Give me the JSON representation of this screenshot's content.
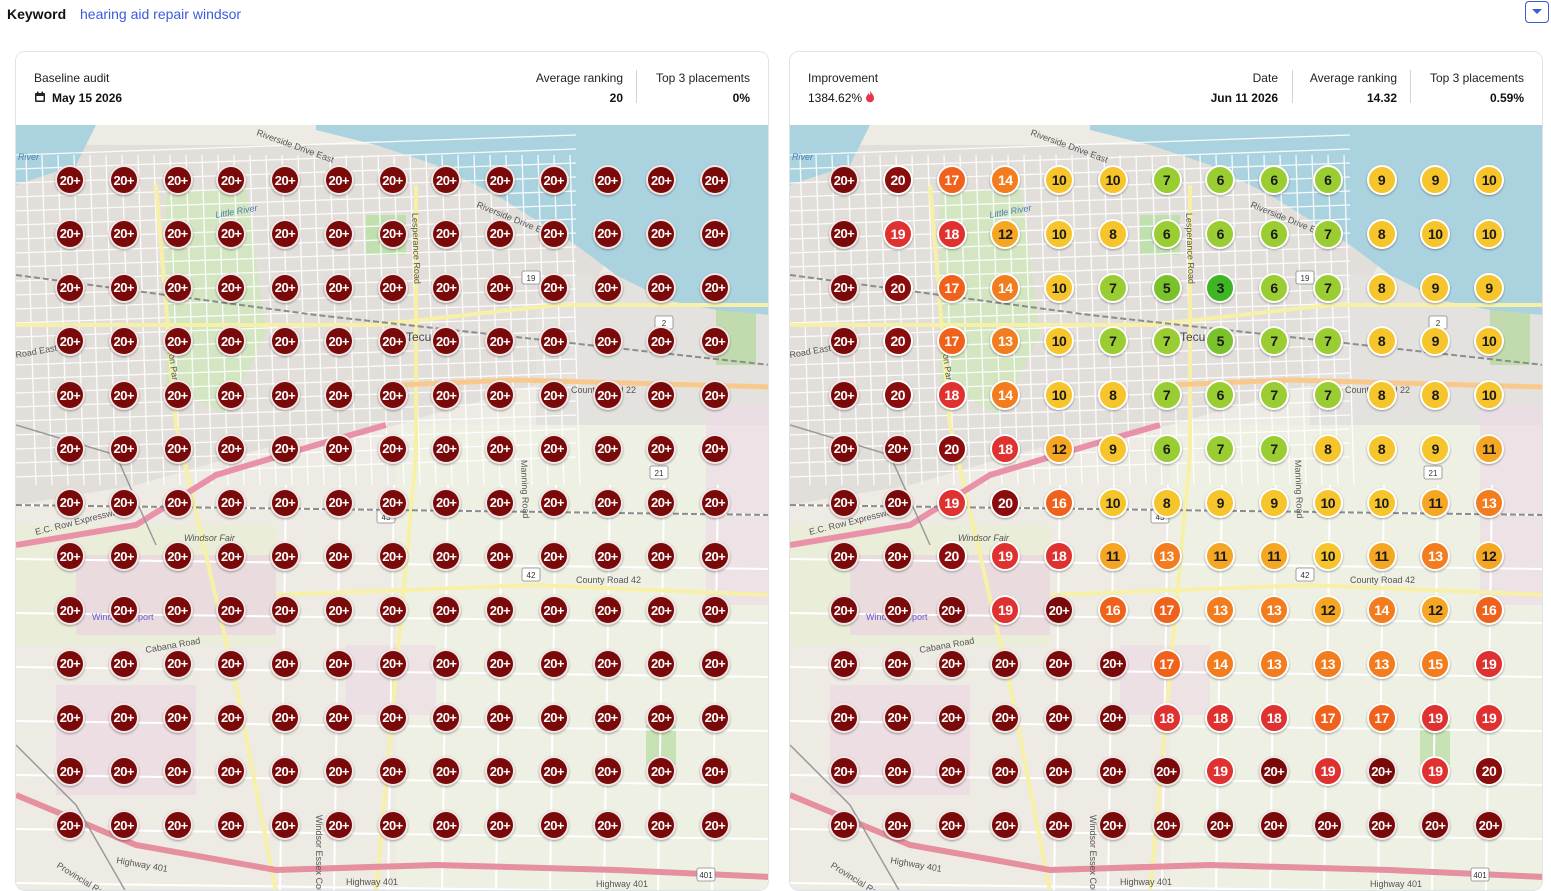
{
  "keyword": {
    "label": "Keyword",
    "value": "hearing aid repair windsor"
  },
  "colors": {
    "accent": "#3b5bdb",
    "rank_20_plus": "#7a0a0a",
    "rank_20": "#8a0c0c",
    "rank_18_19": "#e03131",
    "rank_16_17": "#f0621c",
    "rank_13_15": "#f27c1e",
    "rank_11_12": "#f5a623",
    "rank_8_10": "#f6c52b",
    "rank_6_7": "#9acd32",
    "rank_4_5": "#79c22b",
    "rank_1_3": "#40b523"
  },
  "baseline": {
    "title": "Baseline audit",
    "date": "May 15 2026",
    "date_icon": "calendar-icon",
    "avg_label": "Average ranking",
    "avg_value": "20",
    "top3_label": "Top 3 placements",
    "top3_value": "0%",
    "grid": [
      [
        "20+",
        "20+",
        "20+",
        "20+",
        "20+",
        "20+",
        "20+",
        "20+",
        "20+",
        "20+",
        "20+",
        "20+",
        "20+"
      ],
      [
        "20+",
        "20+",
        "20+",
        "20+",
        "20+",
        "20+",
        "20+",
        "20+",
        "20+",
        "20+",
        "20+",
        "20+",
        "20+"
      ],
      [
        "20+",
        "20+",
        "20+",
        "20+",
        "20+",
        "20+",
        "20+",
        "20+",
        "20+",
        "20+",
        "20+",
        "20+",
        "20+"
      ],
      [
        "20+",
        "20+",
        "20+",
        "20+",
        "20+",
        "20+",
        "20+",
        "20+",
        "20+",
        "20+",
        "20+",
        "20+",
        "20+"
      ],
      [
        "20+",
        "20+",
        "20+",
        "20+",
        "20+",
        "20+",
        "20+",
        "20+",
        "20+",
        "20+",
        "20+",
        "20+",
        "20+"
      ],
      [
        "20+",
        "20+",
        "20+",
        "20+",
        "20+",
        "20+",
        "20+",
        "20+",
        "20+",
        "20+",
        "20+",
        "20+",
        "20+"
      ],
      [
        "20+",
        "20+",
        "20+",
        "20+",
        "20+",
        "20+",
        "20+",
        "20+",
        "20+",
        "20+",
        "20+",
        "20+",
        "20+"
      ],
      [
        "20+",
        "20+",
        "20+",
        "20+",
        "20+",
        "20+",
        "20+",
        "20+",
        "20+",
        "20+",
        "20+",
        "20+",
        "20+"
      ],
      [
        "20+",
        "20+",
        "20+",
        "20+",
        "20+",
        "20+",
        "20+",
        "20+",
        "20+",
        "20+",
        "20+",
        "20+",
        "20+"
      ],
      [
        "20+",
        "20+",
        "20+",
        "20+",
        "20+",
        "20+",
        "20+",
        "20+",
        "20+",
        "20+",
        "20+",
        "20+",
        "20+"
      ],
      [
        "20+",
        "20+",
        "20+",
        "20+",
        "20+",
        "20+",
        "20+",
        "20+",
        "20+",
        "20+",
        "20+",
        "20+",
        "20+"
      ],
      [
        "20+",
        "20+",
        "20+",
        "20+",
        "20+",
        "20+",
        "20+",
        "20+",
        "20+",
        "20+",
        "20+",
        "20+",
        "20+"
      ],
      [
        "20+",
        "20+",
        "20+",
        "20+",
        "20+",
        "20+",
        "20+",
        "20+",
        "20+",
        "20+",
        "20+",
        "20+",
        "20+"
      ]
    ]
  },
  "current": {
    "improvement_label": "Improvement",
    "improvement_value": "1384.62%",
    "improvement_icon": "flame-icon",
    "date_label": "Date",
    "date_value": "Jun 11 2026",
    "avg_label": "Average ranking",
    "avg_value": "14.32",
    "top3_label": "Top 3 placements",
    "top3_value": "0.59%",
    "grid": [
      [
        "20+",
        "20",
        "17",
        "14",
        "10",
        "10",
        "7",
        "6",
        "6",
        "6",
        "9",
        "9",
        "10"
      ],
      [
        "20+",
        "19",
        "18",
        "12",
        "10",
        "8",
        "6",
        "6",
        "6",
        "7",
        "8",
        "10",
        "10"
      ],
      [
        "20+",
        "20",
        "17",
        "14",
        "10",
        "7",
        "5",
        "3",
        "6",
        "7",
        "8",
        "9",
        "9"
      ],
      [
        "20+",
        "20",
        "17",
        "13",
        "10",
        "7",
        "7",
        "5",
        "7",
        "7",
        "8",
        "9",
        "10"
      ],
      [
        "20+",
        "20",
        "18",
        "14",
        "10",
        "8",
        "7",
        "6",
        "7",
        "7",
        "8",
        "8",
        "10"
      ],
      [
        "20+",
        "20+",
        "20",
        "18",
        "12",
        "9",
        "6",
        "7",
        "7",
        "8",
        "8",
        "9",
        "11"
      ],
      [
        "20+",
        "20+",
        "19",
        "20",
        "16",
        "10",
        "8",
        "9",
        "9",
        "10",
        "10",
        "11",
        "13"
      ],
      [
        "20+",
        "20+",
        "20",
        "19",
        "18",
        "11",
        "13",
        "11",
        "11",
        "10",
        "11",
        "13",
        "12"
      ],
      [
        "20+",
        "20+",
        "20+",
        "19",
        "20+",
        "16",
        "17",
        "13",
        "13",
        "12",
        "14",
        "12",
        "16"
      ],
      [
        "20+",
        "20+",
        "20+",
        "20+",
        "20+",
        "20+",
        "17",
        "14",
        "13",
        "13",
        "13",
        "15",
        "19"
      ],
      [
        "20+",
        "20+",
        "20+",
        "20+",
        "20+",
        "20+",
        "18",
        "18",
        "18",
        "17",
        "17",
        "19",
        "19"
      ],
      [
        "20+",
        "20+",
        "20+",
        "20+",
        "20+",
        "20+",
        "20+",
        "19",
        "20+",
        "19",
        "20+",
        "19",
        "20"
      ],
      [
        "20+",
        "20+",
        "20+",
        "20+",
        "20+",
        "20+",
        "20+",
        "20+",
        "20+",
        "20+",
        "20+",
        "20+",
        "20+"
      ]
    ]
  },
  "map_labels": {
    "river": "River",
    "riverside_east": "Riverside Drive East",
    "riverside_east_2": "Riverside Drive East",
    "little_river": "Little River",
    "lesperance": "Lesperance Road",
    "lauzon": "Lauzon Parkway",
    "manning": "Manning Road",
    "county22": "County Road 22",
    "county42": "County Road 42",
    "ec_row": "E.C. Row Expressway",
    "tecumseh": "Tecumseh",
    "windsor_fair": "Windsor Fair",
    "airport": "Windsor Airport",
    "highway401": "Highway 401",
    "provincial": "Provincial Road",
    "hwy_19": "19",
    "hwy_43": "43",
    "hwy_42": "42",
    "hwy_2": "2",
    "hwy_21": "21",
    "hwy_401": "401",
    "road_east": "Road East",
    "banana": "Cabana Road",
    "windsor_county": "Windsor Essex County"
  }
}
